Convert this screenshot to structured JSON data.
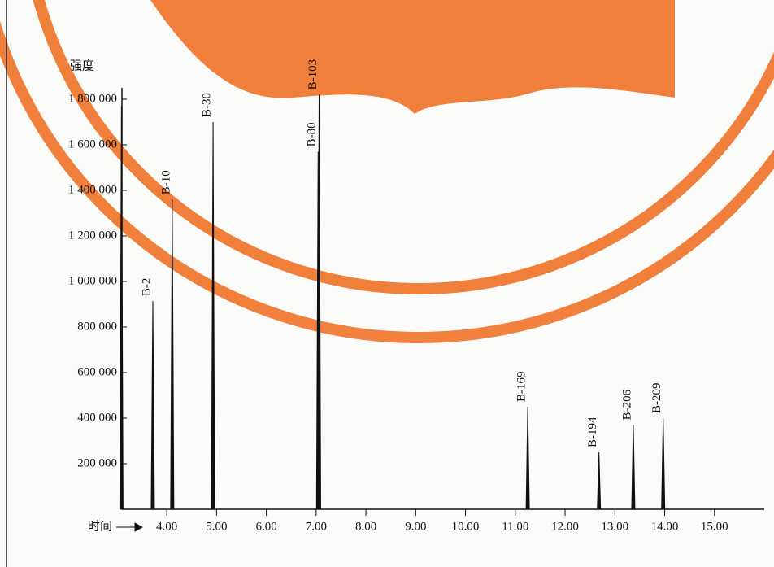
{
  "chart_data": {
    "type": "peaks",
    "ylabel": "强度",
    "xlabel": "时间",
    "xlim": [
      3.1,
      16
    ],
    "ylim": [
      0,
      1850000
    ],
    "xticks": [
      {
        "value": 4,
        "label": "4.00"
      },
      {
        "value": 5,
        "label": "5.00"
      },
      {
        "value": 6,
        "label": "6.00"
      },
      {
        "value": 7,
        "label": "7.00"
      },
      {
        "value": 8,
        "label": "8.00"
      },
      {
        "value": 9,
        "label": "9.00"
      },
      {
        "value": 10,
        "label": "10.00"
      },
      {
        "value": 11,
        "label": "11.00"
      },
      {
        "value": 12,
        "label": "12.00"
      },
      {
        "value": 13,
        "label": "13.00"
      },
      {
        "value": 14,
        "label": "14.00"
      },
      {
        "value": 15,
        "label": "15.00"
      }
    ],
    "yticks": [
      {
        "value": 200000,
        "label": "200 000"
      },
      {
        "value": 400000,
        "label": "400 000"
      },
      {
        "value": 600000,
        "label": "600 000"
      },
      {
        "value": 800000,
        "label": "800 000"
      },
      {
        "value": 1000000,
        "label": "1 000 000"
      },
      {
        "value": 1200000,
        "label": "1 200 000"
      },
      {
        "value": 1400000,
        "label": "1 400 000"
      },
      {
        "value": 1600000,
        "label": "1 600 000"
      },
      {
        "value": 1800000,
        "label": "1 800 000"
      }
    ],
    "color": "#111111",
    "peaks": [
      {
        "label": null,
        "x": 3.09,
        "value": 1770000
      },
      {
        "label": "B-2",
        "x": 3.72,
        "value": 914000
      },
      {
        "label": "B-10",
        "x": 4.11,
        "value": 1360000
      },
      {
        "label": "B-30",
        "x": 4.93,
        "value": 1700000
      },
      {
        "label": "B-80",
        "x": 7.04,
        "value": 1570000
      },
      {
        "label": "B-103",
        "x": 7.06,
        "value": 1820000
      },
      {
        "label": "B-169",
        "x": 11.25,
        "value": 450000
      },
      {
        "label": "B-194",
        "x": 12.68,
        "value": 250000
      },
      {
        "label": "B-206",
        "x": 13.37,
        "value": 370000
      },
      {
        "label": "B-209",
        "x": 13.97,
        "value": 400000
      }
    ]
  }
}
